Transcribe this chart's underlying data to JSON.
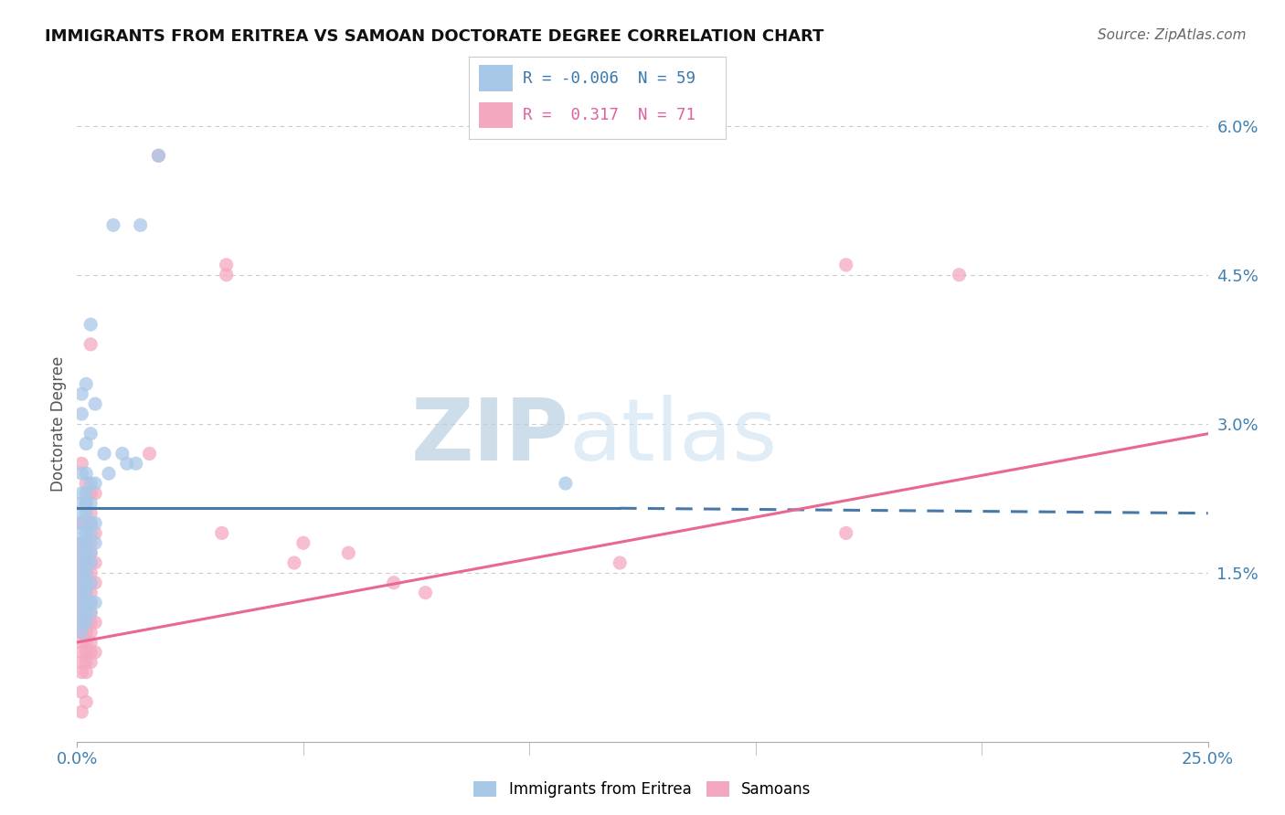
{
  "title": "IMMIGRANTS FROM ERITREA VS SAMOAN DOCTORATE DEGREE CORRELATION CHART",
  "source": "Source: ZipAtlas.com",
  "ylabel": "Doctorate Degree",
  "xlim": [
    0.0,
    0.25
  ],
  "ylim": [
    -0.002,
    0.062
  ],
  "yticks": [
    0.0,
    0.015,
    0.03,
    0.045,
    0.06
  ],
  "ytick_labels": [
    "",
    "1.5%",
    "3.0%",
    "4.5%",
    "6.0%"
  ],
  "color_blue": "#a8c8e8",
  "color_pink": "#f4a8c0",
  "color_blue_line": "#4878a8",
  "color_pink_line": "#e86890",
  "background_color": "#ffffff",
  "grid_color": "#cccccc",
  "watermark_zip": "ZIP",
  "watermark_atlas": "atlas",
  "blue_scatter": [
    [
      0.008,
      0.05
    ],
    [
      0.014,
      0.05
    ],
    [
      0.018,
      0.057
    ],
    [
      0.003,
      0.04
    ],
    [
      0.002,
      0.034
    ],
    [
      0.004,
      0.032
    ],
    [
      0.001,
      0.031
    ],
    [
      0.003,
      0.029
    ],
    [
      0.002,
      0.028
    ],
    [
      0.001,
      0.033
    ],
    [
      0.006,
      0.027
    ],
    [
      0.01,
      0.027
    ],
    [
      0.011,
      0.026
    ],
    [
      0.013,
      0.026
    ],
    [
      0.007,
      0.025
    ],
    [
      0.001,
      0.025
    ],
    [
      0.002,
      0.025
    ],
    [
      0.003,
      0.024
    ],
    [
      0.004,
      0.024
    ],
    [
      0.001,
      0.023
    ],
    [
      0.002,
      0.023
    ],
    [
      0.001,
      0.022
    ],
    [
      0.003,
      0.022
    ],
    [
      0.002,
      0.022
    ],
    [
      0.001,
      0.021
    ],
    [
      0.002,
      0.021
    ],
    [
      0.001,
      0.02
    ],
    [
      0.003,
      0.02
    ],
    [
      0.004,
      0.02
    ],
    [
      0.001,
      0.019
    ],
    [
      0.002,
      0.019
    ],
    [
      0.003,
      0.019
    ],
    [
      0.001,
      0.018
    ],
    [
      0.002,
      0.018
    ],
    [
      0.004,
      0.018
    ],
    [
      0.001,
      0.017
    ],
    [
      0.002,
      0.017
    ],
    [
      0.003,
      0.017
    ],
    [
      0.001,
      0.016
    ],
    [
      0.002,
      0.016
    ],
    [
      0.003,
      0.016
    ],
    [
      0.001,
      0.015
    ],
    [
      0.002,
      0.015
    ],
    [
      0.001,
      0.014
    ],
    [
      0.002,
      0.014
    ],
    [
      0.003,
      0.014
    ],
    [
      0.001,
      0.013
    ],
    [
      0.002,
      0.013
    ],
    [
      0.001,
      0.012
    ],
    [
      0.002,
      0.012
    ],
    [
      0.003,
      0.012
    ],
    [
      0.004,
      0.012
    ],
    [
      0.001,
      0.011
    ],
    [
      0.002,
      0.011
    ],
    [
      0.003,
      0.011
    ],
    [
      0.001,
      0.01
    ],
    [
      0.002,
      0.01
    ],
    [
      0.001,
      0.009
    ],
    [
      0.108,
      0.024
    ]
  ],
  "pink_scatter": [
    [
      0.018,
      0.057
    ],
    [
      0.003,
      0.038
    ],
    [
      0.033,
      0.046
    ],
    [
      0.033,
      0.045
    ],
    [
      0.016,
      0.027
    ],
    [
      0.001,
      0.026
    ],
    [
      0.002,
      0.024
    ],
    [
      0.003,
      0.023
    ],
    [
      0.004,
      0.023
    ],
    [
      0.002,
      0.022
    ],
    [
      0.003,
      0.021
    ],
    [
      0.001,
      0.02
    ],
    [
      0.002,
      0.02
    ],
    [
      0.003,
      0.02
    ],
    [
      0.004,
      0.019
    ],
    [
      0.001,
      0.018
    ],
    [
      0.002,
      0.018
    ],
    [
      0.003,
      0.018
    ],
    [
      0.001,
      0.017
    ],
    [
      0.002,
      0.017
    ],
    [
      0.003,
      0.017
    ],
    [
      0.001,
      0.016
    ],
    [
      0.002,
      0.016
    ],
    [
      0.003,
      0.016
    ],
    [
      0.004,
      0.016
    ],
    [
      0.001,
      0.015
    ],
    [
      0.002,
      0.015
    ],
    [
      0.003,
      0.015
    ],
    [
      0.001,
      0.014
    ],
    [
      0.002,
      0.014
    ],
    [
      0.003,
      0.014
    ],
    [
      0.004,
      0.014
    ],
    [
      0.001,
      0.013
    ],
    [
      0.002,
      0.013
    ],
    [
      0.003,
      0.013
    ],
    [
      0.001,
      0.012
    ],
    [
      0.002,
      0.012
    ],
    [
      0.003,
      0.012
    ],
    [
      0.001,
      0.011
    ],
    [
      0.002,
      0.011
    ],
    [
      0.003,
      0.011
    ],
    [
      0.001,
      0.01
    ],
    [
      0.002,
      0.01
    ],
    [
      0.003,
      0.01
    ],
    [
      0.004,
      0.01
    ],
    [
      0.001,
      0.009
    ],
    [
      0.002,
      0.009
    ],
    [
      0.003,
      0.009
    ],
    [
      0.001,
      0.008
    ],
    [
      0.002,
      0.008
    ],
    [
      0.003,
      0.008
    ],
    [
      0.001,
      0.007
    ],
    [
      0.002,
      0.007
    ],
    [
      0.003,
      0.007
    ],
    [
      0.004,
      0.007
    ],
    [
      0.001,
      0.006
    ],
    [
      0.002,
      0.006
    ],
    [
      0.003,
      0.006
    ],
    [
      0.001,
      0.005
    ],
    [
      0.002,
      0.005
    ],
    [
      0.001,
      0.003
    ],
    [
      0.002,
      0.002
    ],
    [
      0.001,
      0.001
    ],
    [
      0.032,
      0.019
    ],
    [
      0.05,
      0.018
    ],
    [
      0.06,
      0.017
    ],
    [
      0.048,
      0.016
    ],
    [
      0.07,
      0.014
    ],
    [
      0.077,
      0.013
    ],
    [
      0.12,
      0.016
    ],
    [
      0.17,
      0.046
    ],
    [
      0.195,
      0.045
    ],
    [
      0.17,
      0.019
    ]
  ],
  "blue_line": {
    "x0": 0.0,
    "y0": 0.0215,
    "x1": 0.12,
    "y1": 0.0215,
    "x1d": 0.25,
    "y1d": 0.021
  },
  "pink_line": {
    "x0": 0.0,
    "y0": 0.008,
    "x1": 0.25,
    "y1": 0.029
  }
}
